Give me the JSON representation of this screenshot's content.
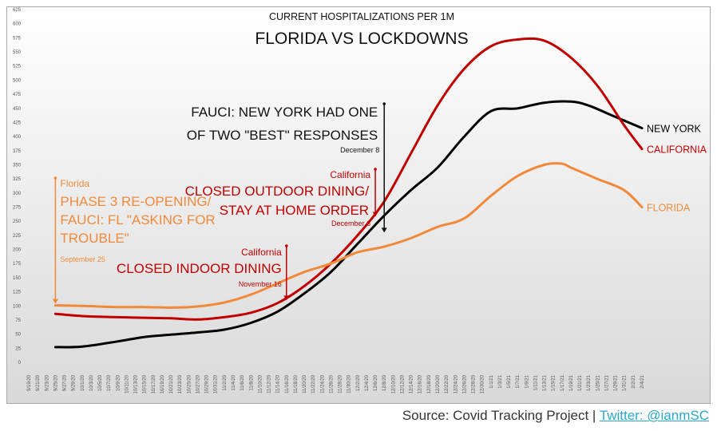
{
  "chart_data": {
    "type": "line",
    "title": "FLORIDA VS LOCKDOWNS",
    "subtitle": "CURRENT HOSPITALIZATIONS PER 1M",
    "ylim": [
      0,
      625
    ],
    "y_ticks": [
      0,
      25,
      50,
      75,
      100,
      125,
      150,
      175,
      200,
      225,
      250,
      275,
      300,
      325,
      350,
      375,
      400,
      425,
      450,
      475,
      500,
      525,
      550,
      575,
      600,
      625
    ],
    "x_tick_labels": [
      "9/19/20",
      "9/21/20",
      "9/23/20",
      "9/25/20",
      "9/27/20",
      "9/29/20",
      "10/1/20",
      "10/3/20",
      "10/5/20",
      "10/7/20",
      "10/9/20",
      "10/11/20",
      "10/13/20",
      "10/15/20",
      "10/17/20",
      "10/19/20",
      "10/21/20",
      "10/23/20",
      "10/25/20",
      "10/27/20",
      "10/29/20",
      "10/31/20",
      "11/2/20",
      "11/4/20",
      "11/6/20",
      "11/8/20",
      "11/10/20",
      "11/12/20",
      "11/14/20",
      "11/16/20",
      "11/18/20",
      "11/20/20",
      "11/22/20",
      "11/24/20",
      "11/26/20",
      "11/28/20",
      "11/30/20",
      "12/2/20",
      "12/4/20",
      "12/6/20",
      "12/8/20",
      "12/10/20",
      "12/12/20",
      "12/14/20",
      "12/16/20",
      "12/18/20",
      "12/20/20",
      "12/22/20",
      "12/24/20",
      "12/26/20",
      "12/28/20",
      "12/30/20",
      "1/1/21",
      "1/3/21",
      "1/5/21",
      "1/7/21",
      "1/9/21",
      "1/11/21",
      "1/13/21",
      "1/15/21",
      "1/17/21",
      "1/19/21",
      "1/21/21",
      "1/23/21",
      "1/25/21",
      "1/27/21",
      "1/29/21",
      "1/31/21",
      "2/2/21",
      "2/4/21"
    ],
    "series": [
      {
        "name": "NEW YORK",
        "color": "#000000",
        "x": [
          "9/25/20",
          "10/1/20",
          "10/9/20",
          "10/15/20",
          "10/21/20",
          "10/27/20",
          "11/2/20",
          "11/8/20",
          "11/14/20",
          "11/20/20",
          "11/26/20",
          "12/2/20",
          "12/8/20",
          "12/14/20",
          "12/20/20",
          "12/26/20",
          "1/1/21",
          "1/7/21",
          "1/13/21",
          "1/19/21",
          "1/23/21",
          "1/29/21",
          "2/4/21"
        ],
        "values": [
          27,
          28,
          37,
          45,
          49,
          53,
          58,
          70,
          90,
          122,
          160,
          210,
          260,
          305,
          345,
          400,
          445,
          450,
          460,
          462,
          455,
          435,
          415
        ]
      },
      {
        "name": "CALIFORNIA",
        "color": "#c00000",
        "x": [
          "9/25/20",
          "10/1/20",
          "10/9/20",
          "10/15/20",
          "10/21/20",
          "10/27/20",
          "11/2/20",
          "11/8/20",
          "11/14/20",
          "11/20/20",
          "11/26/20",
          "12/2/20",
          "12/8/20",
          "12/14/20",
          "12/20/20",
          "12/26/20",
          "1/1/21",
          "1/7/21",
          "1/13/21",
          "1/19/21",
          "1/25/21",
          "1/31/21",
          "2/4/21"
        ],
        "values": [
          86,
          82,
          80,
          79,
          78,
          76,
          80,
          88,
          105,
          135,
          175,
          225,
          285,
          370,
          455,
          520,
          560,
          572,
          570,
          540,
          490,
          420,
          378
        ]
      },
      {
        "name": "FLORIDA",
        "color": "#f08a3a",
        "x": [
          "9/25/20",
          "10/1/20",
          "10/9/20",
          "10/15/20",
          "10/21/20",
          "10/27/20",
          "11/2/20",
          "11/8/20",
          "11/14/20",
          "11/20/20",
          "11/26/20",
          "12/2/20",
          "12/8/20",
          "12/14/20",
          "12/20/20",
          "12/26/20",
          "1/1/21",
          "1/7/21",
          "1/13/21",
          "1/17/21",
          "1/19/21",
          "1/25/21",
          "1/31/21",
          "2/4/21"
        ],
        "values": [
          101,
          100,
          98,
          98,
          97,
          99,
          106,
          120,
          140,
          160,
          175,
          195,
          205,
          220,
          240,
          255,
          295,
          330,
          350,
          352,
          345,
          325,
          305,
          275
        ]
      }
    ],
    "annotations": [
      {
        "kind": "small",
        "color": "#f08a3a",
        "text": "Florida"
      },
      {
        "kind": "big",
        "color": "#f08a3a",
        "lines": [
          "PHASE 3 RE-OPENING/",
          "FAUCI: FL \"ASKING FOR",
          "TROUBLE\""
        ]
      },
      {
        "kind": "date",
        "color": "#f08a3a",
        "text": "September 25"
      },
      {
        "kind": "small",
        "color": "#c00000",
        "text": "California"
      },
      {
        "kind": "big",
        "color": "#c00000",
        "lines": [
          "CLOSED INDOOR DINING"
        ]
      },
      {
        "kind": "date",
        "color": "#c00000",
        "text": "November 16"
      },
      {
        "kind": "small",
        "color": "#c00000",
        "text": "California"
      },
      {
        "kind": "big",
        "color": "#c00000",
        "lines": [
          "CLOSED OUTDOOR DINING/",
          "STAY AT HOME ORDER"
        ]
      },
      {
        "kind": "date",
        "color": "#c00000",
        "text": "December 6"
      },
      {
        "kind": "big",
        "color": "#111111",
        "lines": [
          "FAUCI: NEW YORK HAD ONE",
          "OF TWO \"BEST\" RESPONSES"
        ]
      },
      {
        "kind": "date",
        "color": "#111111",
        "text": "December 8"
      }
    ]
  },
  "footer": {
    "source_text": "Source: Covid Tracking Project | ",
    "twitter_text": "Twitter: @ianmSC"
  }
}
